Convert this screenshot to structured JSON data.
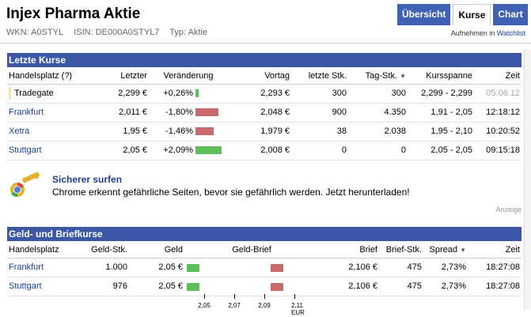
{
  "header": {
    "title": "Injex Pharma Aktie",
    "wkn": "WKN: A0STYL",
    "isin": "ISIN: DE000A0STYL7",
    "typ": "Typ: Aktie",
    "watchlist_prefix": "Aufnehmen in ",
    "watchlist_link": "Watchlist"
  },
  "tabs": [
    "Übersicht",
    "Kurse",
    "Chart"
  ],
  "letzte_kurse": {
    "title": "Letzte Kurse",
    "headers": [
      "Handelsplatz (?)",
      "Letzter",
      "Veränderung",
      "Vortag",
      "letzte Stk.",
      "Tag-Stk.",
      "Kursspanne",
      "Zeit"
    ],
    "sort_indicator": "▼",
    "rows": [
      {
        "platz": "Tradegate",
        "letzter": "2,299 €",
        "veraenderung": "+0,26%",
        "dir": "up",
        "pct": 0.26,
        "vortag": "2,293 €",
        "letzte_stk": "300",
        "tag_stk": "300",
        "spanne": "2,299 - 2,299",
        "zeit": "05.06.12"
      },
      {
        "platz": "Frankfurt",
        "letzter": "2,011 €",
        "veraenderung": "-1,80%",
        "dir": "down",
        "pct": 1.8,
        "vortag": "2,048 €",
        "letzte_stk": "900",
        "tag_stk": "4.350",
        "spanne": "1,91 - 2,05",
        "zeit": "12:18:12"
      },
      {
        "platz": "Xetra",
        "letzter": "1,95 €",
        "veraenderung": "-1,46%",
        "dir": "down",
        "pct": 1.46,
        "vortag": "1,979 €",
        "letzte_stk": "38",
        "tag_stk": "2.038",
        "spanne": "1,95 - 2,10",
        "zeit": "10:20:52"
      },
      {
        "platz": "Stuttgart",
        "letzter": "2,05 €",
        "veraenderung": "+2,09%",
        "dir": "up",
        "pct": 2.09,
        "vortag": "2,008 €",
        "letzte_stk": "0",
        "tag_stk": "0",
        "spanne": "2,05 - 2,05",
        "zeit": "09:15:18"
      }
    ]
  },
  "ad": {
    "title": "Sicherer surfen",
    "text": "Chrome erkennt gefährliche Seiten, bevor sie gefährlich werden. Jetzt herunterladen!",
    "label": "Anzeige",
    "icon": "chrome-key-icon"
  },
  "geld_brief": {
    "title": "Geld- und Briefkurse",
    "headers": [
      "Handelsplatz",
      "Geld-Stk.",
      "Geld",
      "Geld-Brief",
      "Brief",
      "Brief-Stk.",
      "Spread",
      "Zeit"
    ],
    "sort_indicator": "▼",
    "rows": [
      {
        "platz": "Frankfurt",
        "geld_stk": "1.000",
        "geld": "2,05 €",
        "geld_value": 2.05,
        "brief": "2,106 €",
        "brief_value": 2.106,
        "brief_stk": "475",
        "spread": "2,73%",
        "zeit": "18:27:08"
      },
      {
        "platz": "Stuttgart",
        "geld_stk": "976",
        "geld": "2,05 €",
        "geld_value": 2.05,
        "brief": "2,106 €",
        "brief_value": 2.106,
        "brief_stk": "475",
        "spread": "2,73%",
        "zeit": "18:27:08"
      }
    ],
    "axis_ticks": [
      "2,05",
      "2,07",
      "2,09",
      "2,11 EUR"
    ],
    "axis_values": [
      2.05,
      2.07,
      2.09,
      2.11
    ]
  },
  "colors": {
    "accent": "#3b57a5",
    "up": "#5cbf5c",
    "down": "#c86a6a",
    "link": "#1f3f8f"
  }
}
